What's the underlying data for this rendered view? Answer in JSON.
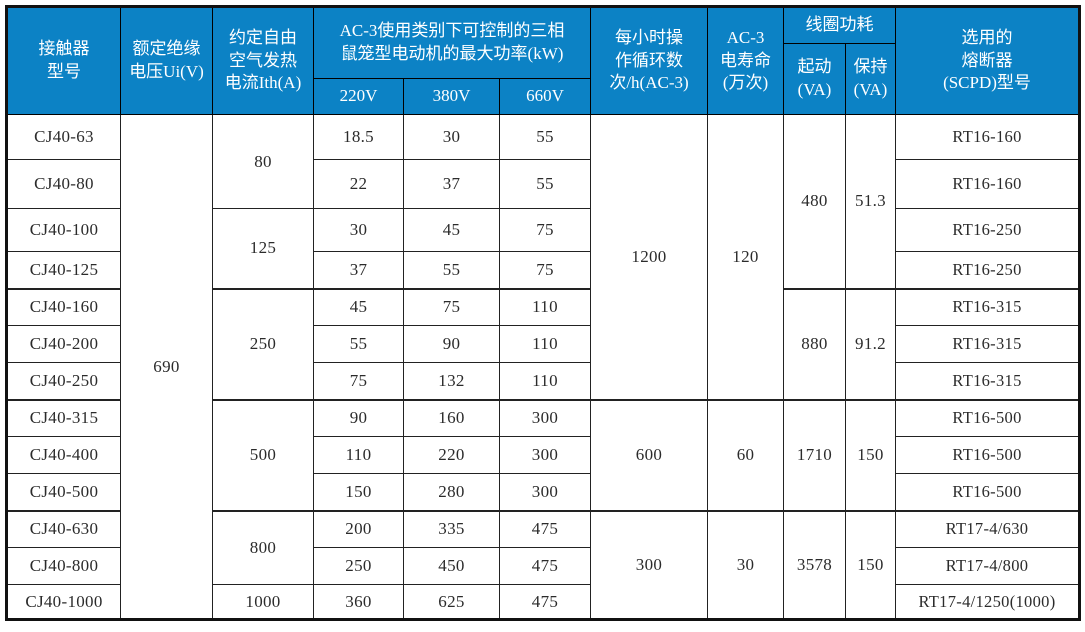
{
  "colors": {
    "header_bg": "#0c82c5",
    "header_text": "#ffffff",
    "body_text": "#2b2b2b",
    "grid_line": "#222222",
    "outer_line": "#111111"
  },
  "table": {
    "header": {
      "model": "接触器\n型号",
      "ui": "额定绝缘\n电压Ui(V)",
      "ith": "约定自由\n空气发热\n电流Ith(A)",
      "kw_group": "AC-3使用类别下可控制的三相\n鼠笼型电动机的最大功率(kW)",
      "v220": "220V",
      "v380": "380V",
      "v660": "660V",
      "cycles": "每小时操\n作循环数\n次/h(AC-3)",
      "life": "AC-3\n电寿命\n(万次)",
      "coil_group": "线圈功耗",
      "coil_start": "起动\n(VA)",
      "coil_hold": "保持\n(VA)",
      "fuse": "选用的\n熔断器\n(SCPD)型号"
    },
    "merged": {
      "ui": "690",
      "ith_g1": "80",
      "ith_g2": "125",
      "ith_g3": "250",
      "ith_g4": "500",
      "ith_g5": "800",
      "ith_g6": "1000",
      "cycles_g1": "1200",
      "cycles_g2": "600",
      "cycles_g3": "300",
      "life_g1": "120",
      "life_g2": "60",
      "life_g3": "30",
      "start_g1": "480",
      "start_g2": "880",
      "start_g3": "1710",
      "start_g4": "3578",
      "hold_g1": "51.3",
      "hold_g2": "91.2",
      "hold_g3": "150",
      "hold_g4": "150"
    },
    "rows": [
      {
        "model": "CJ40-63",
        "p220": "18.5",
        "p380": "30",
        "p660": "55",
        "fuse": "RT16-160"
      },
      {
        "model": "CJ40-80",
        "p220": "22",
        "p380": "37",
        "p660": "55",
        "fuse": "RT16-160"
      },
      {
        "model": "CJ40-100",
        "p220": "30",
        "p380": "45",
        "p660": "75",
        "fuse": "RT16-250"
      },
      {
        "model": "CJ40-125",
        "p220": "37",
        "p380": "55",
        "p660": "75",
        "fuse": "RT16-250"
      },
      {
        "model": "CJ40-160",
        "p220": "45",
        "p380": "75",
        "p660": "110",
        "fuse": "RT16-315"
      },
      {
        "model": "CJ40-200",
        "p220": "55",
        "p380": "90",
        "p660": "110",
        "fuse": "RT16-315"
      },
      {
        "model": "CJ40-250",
        "p220": "75",
        "p380": "132",
        "p660": "110",
        "fuse": "RT16-315"
      },
      {
        "model": "CJ40-315",
        "p220": "90",
        "p380": "160",
        "p660": "300",
        "fuse": "RT16-500"
      },
      {
        "model": "CJ40-400",
        "p220": "110",
        "p380": "220",
        "p660": "300",
        "fuse": "RT16-500"
      },
      {
        "model": "CJ40-500",
        "p220": "150",
        "p380": "280",
        "p660": "300",
        "fuse": "RT16-500"
      },
      {
        "model": "CJ40-630",
        "p220": "200",
        "p380": "335",
        "p660": "475",
        "fuse": "RT17-4/630"
      },
      {
        "model": "CJ40-800",
        "p220": "250",
        "p380": "450",
        "p660": "475",
        "fuse": "RT17-4/800"
      },
      {
        "model": "CJ40-1000",
        "p220": "360",
        "p380": "625",
        "p660": "475",
        "fuse": "RT17-4/1250(1000)"
      }
    ]
  }
}
